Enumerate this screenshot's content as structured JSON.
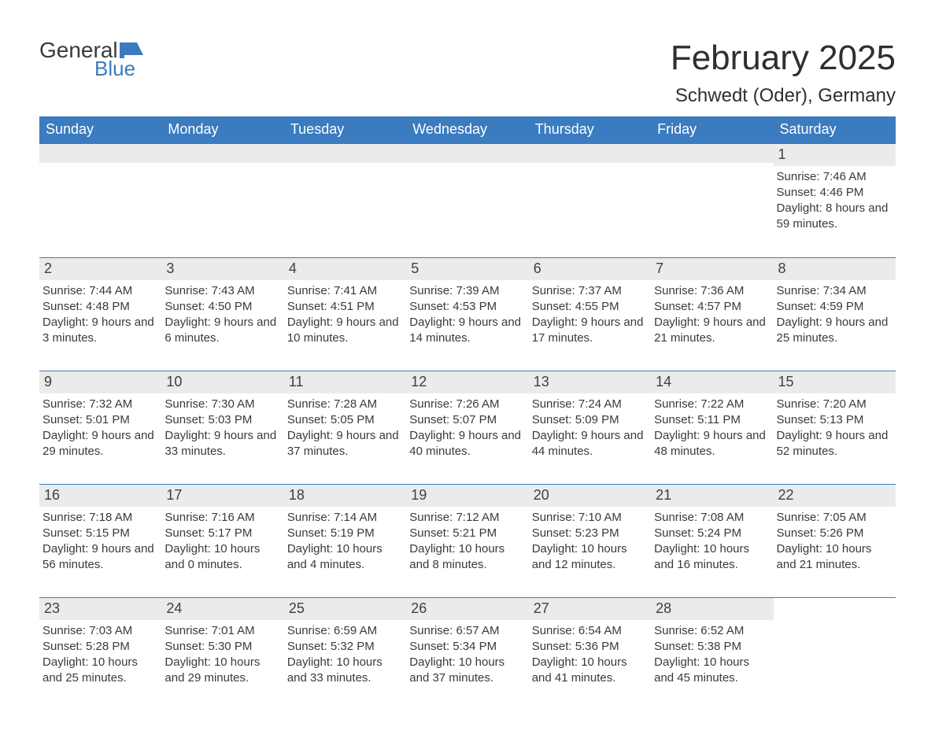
{
  "brand": {
    "text1": "General",
    "text2": "Blue",
    "logo_color": "#3b7bbf"
  },
  "header": {
    "month_title": "February 2025",
    "location": "Schwedt (Oder), Germany"
  },
  "colors": {
    "header_bg": "#3b7bbf",
    "daynum_bg": "#ebebeb",
    "text": "#3a3a3a",
    "page_bg": "#ffffff"
  },
  "day_names": [
    "Sunday",
    "Monday",
    "Tuesday",
    "Wednesday",
    "Thursday",
    "Friday",
    "Saturday"
  ],
  "weeks": [
    [
      null,
      null,
      null,
      null,
      null,
      null,
      {
        "n": "1",
        "sunrise": "Sunrise: 7:46 AM",
        "sunset": "Sunset: 4:46 PM",
        "daylight": "Daylight: 8 hours and 59 minutes."
      }
    ],
    [
      {
        "n": "2",
        "sunrise": "Sunrise: 7:44 AM",
        "sunset": "Sunset: 4:48 PM",
        "daylight": "Daylight: 9 hours and 3 minutes."
      },
      {
        "n": "3",
        "sunrise": "Sunrise: 7:43 AM",
        "sunset": "Sunset: 4:50 PM",
        "daylight": "Daylight: 9 hours and 6 minutes."
      },
      {
        "n": "4",
        "sunrise": "Sunrise: 7:41 AM",
        "sunset": "Sunset: 4:51 PM",
        "daylight": "Daylight: 9 hours and 10 minutes."
      },
      {
        "n": "5",
        "sunrise": "Sunrise: 7:39 AM",
        "sunset": "Sunset: 4:53 PM",
        "daylight": "Daylight: 9 hours and 14 minutes."
      },
      {
        "n": "6",
        "sunrise": "Sunrise: 7:37 AM",
        "sunset": "Sunset: 4:55 PM",
        "daylight": "Daylight: 9 hours and 17 minutes."
      },
      {
        "n": "7",
        "sunrise": "Sunrise: 7:36 AM",
        "sunset": "Sunset: 4:57 PM",
        "daylight": "Daylight: 9 hours and 21 minutes."
      },
      {
        "n": "8",
        "sunrise": "Sunrise: 7:34 AM",
        "sunset": "Sunset: 4:59 PM",
        "daylight": "Daylight: 9 hours and 25 minutes."
      }
    ],
    [
      {
        "n": "9",
        "sunrise": "Sunrise: 7:32 AM",
        "sunset": "Sunset: 5:01 PM",
        "daylight": "Daylight: 9 hours and 29 minutes."
      },
      {
        "n": "10",
        "sunrise": "Sunrise: 7:30 AM",
        "sunset": "Sunset: 5:03 PM",
        "daylight": "Daylight: 9 hours and 33 minutes."
      },
      {
        "n": "11",
        "sunrise": "Sunrise: 7:28 AM",
        "sunset": "Sunset: 5:05 PM",
        "daylight": "Daylight: 9 hours and 37 minutes."
      },
      {
        "n": "12",
        "sunrise": "Sunrise: 7:26 AM",
        "sunset": "Sunset: 5:07 PM",
        "daylight": "Daylight: 9 hours and 40 minutes."
      },
      {
        "n": "13",
        "sunrise": "Sunrise: 7:24 AM",
        "sunset": "Sunset: 5:09 PM",
        "daylight": "Daylight: 9 hours and 44 minutes."
      },
      {
        "n": "14",
        "sunrise": "Sunrise: 7:22 AM",
        "sunset": "Sunset: 5:11 PM",
        "daylight": "Daylight: 9 hours and 48 minutes."
      },
      {
        "n": "15",
        "sunrise": "Sunrise: 7:20 AM",
        "sunset": "Sunset: 5:13 PM",
        "daylight": "Daylight: 9 hours and 52 minutes."
      }
    ],
    [
      {
        "n": "16",
        "sunrise": "Sunrise: 7:18 AM",
        "sunset": "Sunset: 5:15 PM",
        "daylight": "Daylight: 9 hours and 56 minutes."
      },
      {
        "n": "17",
        "sunrise": "Sunrise: 7:16 AM",
        "sunset": "Sunset: 5:17 PM",
        "daylight": "Daylight: 10 hours and 0 minutes."
      },
      {
        "n": "18",
        "sunrise": "Sunrise: 7:14 AM",
        "sunset": "Sunset: 5:19 PM",
        "daylight": "Daylight: 10 hours and 4 minutes."
      },
      {
        "n": "19",
        "sunrise": "Sunrise: 7:12 AM",
        "sunset": "Sunset: 5:21 PM",
        "daylight": "Daylight: 10 hours and 8 minutes."
      },
      {
        "n": "20",
        "sunrise": "Sunrise: 7:10 AM",
        "sunset": "Sunset: 5:23 PM",
        "daylight": "Daylight: 10 hours and 12 minutes."
      },
      {
        "n": "21",
        "sunrise": "Sunrise: 7:08 AM",
        "sunset": "Sunset: 5:24 PM",
        "daylight": "Daylight: 10 hours and 16 minutes."
      },
      {
        "n": "22",
        "sunrise": "Sunrise: 7:05 AM",
        "sunset": "Sunset: 5:26 PM",
        "daylight": "Daylight: 10 hours and 21 minutes."
      }
    ],
    [
      {
        "n": "23",
        "sunrise": "Sunrise: 7:03 AM",
        "sunset": "Sunset: 5:28 PM",
        "daylight": "Daylight: 10 hours and 25 minutes."
      },
      {
        "n": "24",
        "sunrise": "Sunrise: 7:01 AM",
        "sunset": "Sunset: 5:30 PM",
        "daylight": "Daylight: 10 hours and 29 minutes."
      },
      {
        "n": "25",
        "sunrise": "Sunrise: 6:59 AM",
        "sunset": "Sunset: 5:32 PM",
        "daylight": "Daylight: 10 hours and 33 minutes."
      },
      {
        "n": "26",
        "sunrise": "Sunrise: 6:57 AM",
        "sunset": "Sunset: 5:34 PM",
        "daylight": "Daylight: 10 hours and 37 minutes."
      },
      {
        "n": "27",
        "sunrise": "Sunrise: 6:54 AM",
        "sunset": "Sunset: 5:36 PM",
        "daylight": "Daylight: 10 hours and 41 minutes."
      },
      {
        "n": "28",
        "sunrise": "Sunrise: 6:52 AM",
        "sunset": "Sunset: 5:38 PM",
        "daylight": "Daylight: 10 hours and 45 minutes."
      },
      null
    ]
  ]
}
